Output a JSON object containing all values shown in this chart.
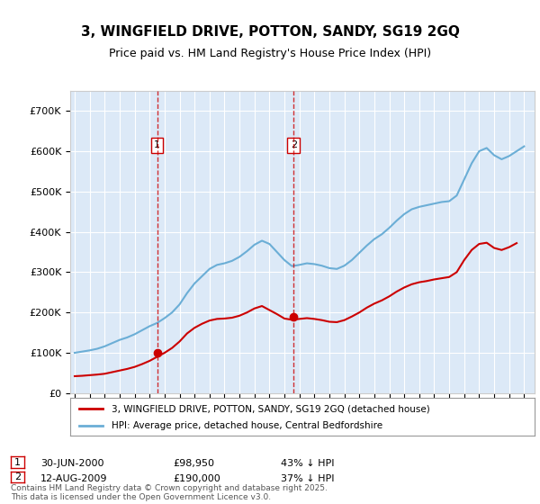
{
  "title": "3, WINGFIELD DRIVE, POTTON, SANDY, SG19 2GQ",
  "subtitle": "Price paid vs. HM Land Registry's House Price Index (HPI)",
  "ylabel": "",
  "background_color": "#ffffff",
  "plot_bg_color": "#dce9f7",
  "grid_color": "#ffffff",
  "legend_label_red": "3, WINGFIELD DRIVE, POTTON, SANDY, SG19 2GQ (detached house)",
  "legend_label_blue": "HPI: Average price, detached house, Central Bedfordshire",
  "footnote": "Contains HM Land Registry data © Crown copyright and database right 2025.\nThis data is licensed under the Open Government Licence v3.0.",
  "sale1_label": "1",
  "sale1_date": "30-JUN-2000",
  "sale1_price": "£98,950",
  "sale1_hpi": "43% ↓ HPI",
  "sale2_label": "2",
  "sale2_date": "12-AUG-2009",
  "sale2_price": "£190,000",
  "sale2_hpi": "37% ↓ HPI",
  "sale1_x": 2000.5,
  "sale1_y": 98950,
  "sale1_vline_x": 2000.5,
  "sale2_x": 2009.62,
  "sale2_y": 190000,
  "sale2_vline_x": 2009.62,
  "ylim": [
    0,
    750000
  ],
  "xlim_start": 1994.7,
  "xlim_end": 2025.7,
  "red_color": "#cc0000",
  "blue_color": "#6baed6",
  "vline_color": "#cc0000"
}
